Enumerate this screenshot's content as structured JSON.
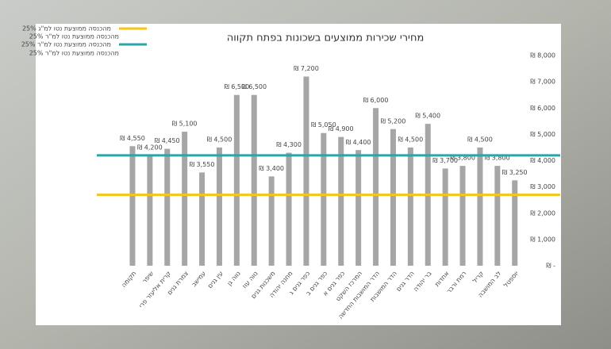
{
  "chart_data": {
    "type": "bar",
    "title": "מחירי שכירות ממוצעים בשכונות בפתח תקווה",
    "categories": [
      "תקומה",
      "שיפר",
      "קרית אליעזר פרי",
      "צמרת גנים",
      "עמישב",
      "עין גנים",
      "נווה גן",
      "נווה עוז",
      "משכנות גנים",
      "מחנה יהודה",
      "כפר גנים ג",
      "כפר גנים ב",
      "כפר גנים א",
      "המרכז השקט",
      "הדר המושבות החדשה",
      "הדר המושבות",
      "הדר גנים",
      "בר יהודה",
      "אחדות",
      "רמת ורבר",
      "קריל",
      "לב המושבה",
      "יוספטל"
    ],
    "values": [
      4550,
      4200,
      4450,
      5100,
      3550,
      4500,
      6500,
      6500,
      3400,
      4300,
      7200,
      5050,
      4900,
      4400,
      6000,
      5200,
      4500,
      5400,
      3700,
      3800,
      4500,
      3800,
      3250
    ],
    "value_labels": [
      "₪ 4,550",
      "₪ 4,200",
      "₪ 4,450",
      "₪ 5,100",
      "₪ 3,550",
      "₪ 4,500",
      "₪ 6,500",
      "₪ 6,500",
      "₪ 3,400",
      "₪ 4,300",
      "₪ 7,200",
      "₪ 5,050",
      "₪ 4,900",
      "₪ 4,400",
      "₪ 6,000",
      "₪ 5,200",
      "₪ 4,500",
      "₪ 5,400",
      "₪ 3,700",
      "₪ 3,800",
      "₪ 4,500",
      "₪ 3,800",
      "₪ 3,250"
    ],
    "color": "#a6a6a6",
    "reference_lines": [
      {
        "name": "25% מהכנסה ממוצעת נטו למ\"ג",
        "value": 2700,
        "color": "#f5c518"
      },
      {
        "name": "25% מהכנסה ממוצעת נטו למ\"ר",
        "value": 4200,
        "color": "#2aa5a8"
      }
    ],
    "legend_notes": [
      "25% מהכנסה ממוצעת נטו למ\"ר",
      "25% מהכנסה ממוצעת נטו למ\"ר"
    ],
    "ylim": [
      0,
      8000
    ],
    "yticks": [
      {
        "value": 0,
        "label": "₪ -"
      },
      {
        "value": 1000,
        "label": "₪ 1,000"
      },
      {
        "value": 2000,
        "label": "₪ 2,000"
      },
      {
        "value": 3000,
        "label": "₪ 3,000"
      },
      {
        "value": 4000,
        "label": "₪ 4,000"
      },
      {
        "value": 5000,
        "label": "₪ 5,000"
      },
      {
        "value": 6000,
        "label": "₪ 6,000"
      },
      {
        "value": 7000,
        "label": "₪ 7,000"
      },
      {
        "value": 8000,
        "label": "₪ 8,000"
      }
    ],
    "y_axis_side": "right",
    "legend": "top-left",
    "grid": false
  }
}
